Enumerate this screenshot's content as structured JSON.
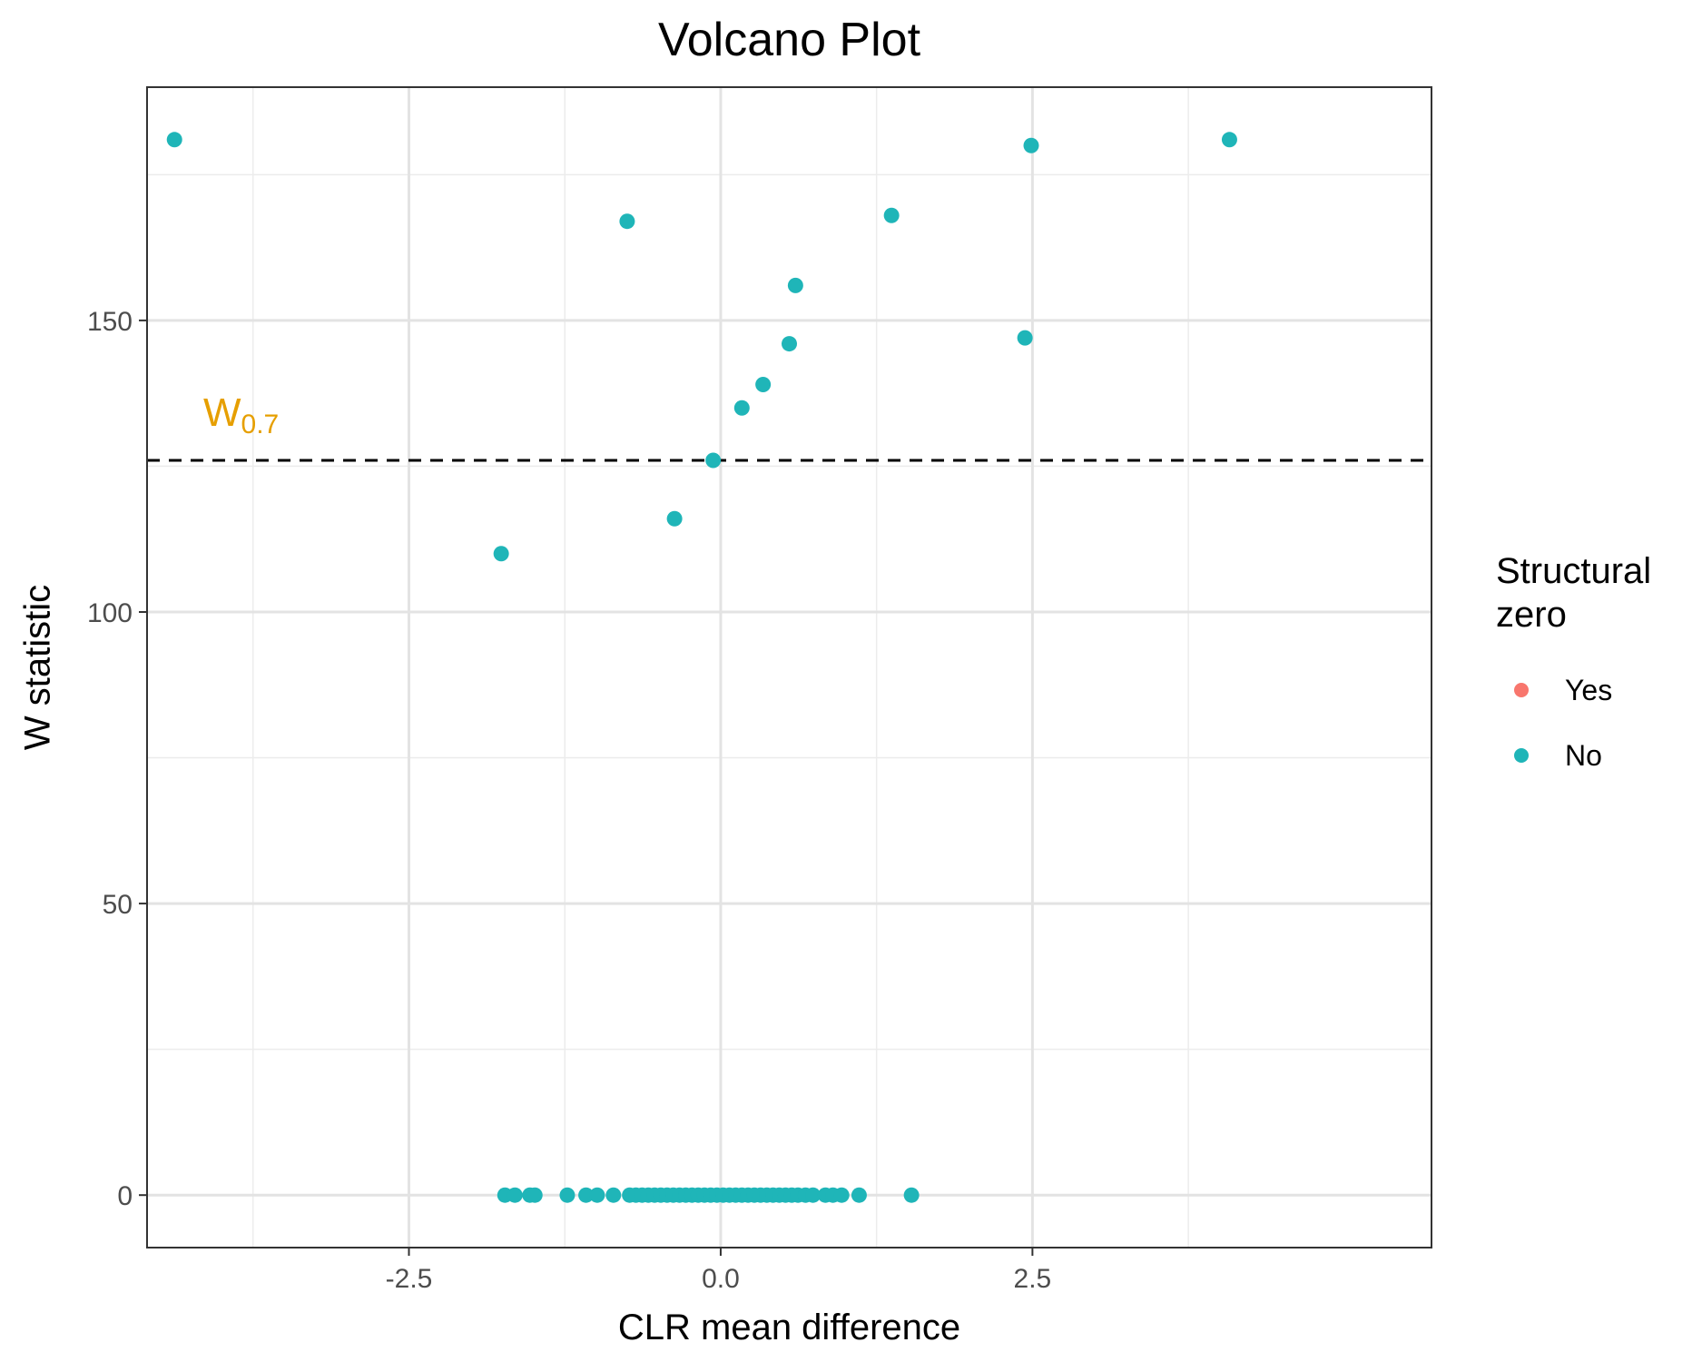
{
  "chart_data": {
    "type": "scatter",
    "title": "Volcano Plot",
    "xlabel": "CLR mean difference",
    "ylabel": "W statistic",
    "xlim": [
      -4.6,
      5.7
    ],
    "ylim": [
      -9,
      190
    ],
    "x_ticks": [
      -2.5,
      0.0,
      2.5
    ],
    "x_tick_labels": [
      "-2.5",
      "0.0",
      "2.5"
    ],
    "y_ticks": [
      0,
      50,
      100,
      150
    ],
    "y_tick_labels": [
      "0",
      "50",
      "100",
      "150"
    ],
    "grid": true,
    "threshold": {
      "value": 126,
      "style": "dashed",
      "label": "W",
      "label_sub": "0.7",
      "label_color": "#E69F00"
    },
    "legend": {
      "title": "Structural\nzero",
      "placement": "right",
      "entries": [
        {
          "label": "Yes",
          "color": "#F8766D"
        },
        {
          "label": "No",
          "color": "#1FB5B8"
        }
      ]
    },
    "series": [
      {
        "name": "No",
        "color": "#1FB5B8",
        "points": [
          [
            -4.38,
            181
          ],
          [
            -0.75,
            167
          ],
          [
            1.37,
            168
          ],
          [
            2.49,
            180
          ],
          [
            4.08,
            181
          ],
          [
            0.6,
            156
          ],
          [
            0.55,
            146
          ],
          [
            2.44,
            147
          ],
          [
            0.34,
            139
          ],
          [
            0.17,
            135
          ],
          [
            -0.06,
            126
          ],
          [
            -0.37,
            116
          ],
          [
            -1.76,
            110
          ],
          [
            -1.73,
            0
          ],
          [
            -1.65,
            0
          ],
          [
            -1.53,
            0
          ],
          [
            -1.49,
            0
          ],
          [
            -1.23,
            0
          ],
          [
            -1.08,
            0
          ],
          [
            -0.99,
            0
          ],
          [
            -0.86,
            0
          ],
          [
            -0.73,
            0
          ],
          [
            -0.68,
            0
          ],
          [
            -0.63,
            0
          ],
          [
            -0.58,
            0
          ],
          [
            -0.53,
            0
          ],
          [
            -0.48,
            0
          ],
          [
            -0.43,
            0
          ],
          [
            -0.38,
            0
          ],
          [
            -0.33,
            0
          ],
          [
            -0.28,
            0
          ],
          [
            -0.23,
            0
          ],
          [
            -0.18,
            0
          ],
          [
            -0.13,
            0
          ],
          [
            -0.08,
            0
          ],
          [
            -0.03,
            0
          ],
          [
            0.02,
            0
          ],
          [
            0.07,
            0
          ],
          [
            0.12,
            0
          ],
          [
            0.17,
            0
          ],
          [
            0.22,
            0
          ],
          [
            0.27,
            0
          ],
          [
            0.32,
            0
          ],
          [
            0.37,
            0
          ],
          [
            0.42,
            0
          ],
          [
            0.47,
            0
          ],
          [
            0.52,
            0
          ],
          [
            0.57,
            0
          ],
          [
            0.62,
            0
          ],
          [
            0.68,
            0
          ],
          [
            0.74,
            0
          ],
          [
            0.84,
            0
          ],
          [
            0.9,
            0
          ],
          [
            0.97,
            0
          ],
          [
            1.11,
            0
          ],
          [
            1.53,
            0
          ]
        ]
      }
    ]
  }
}
